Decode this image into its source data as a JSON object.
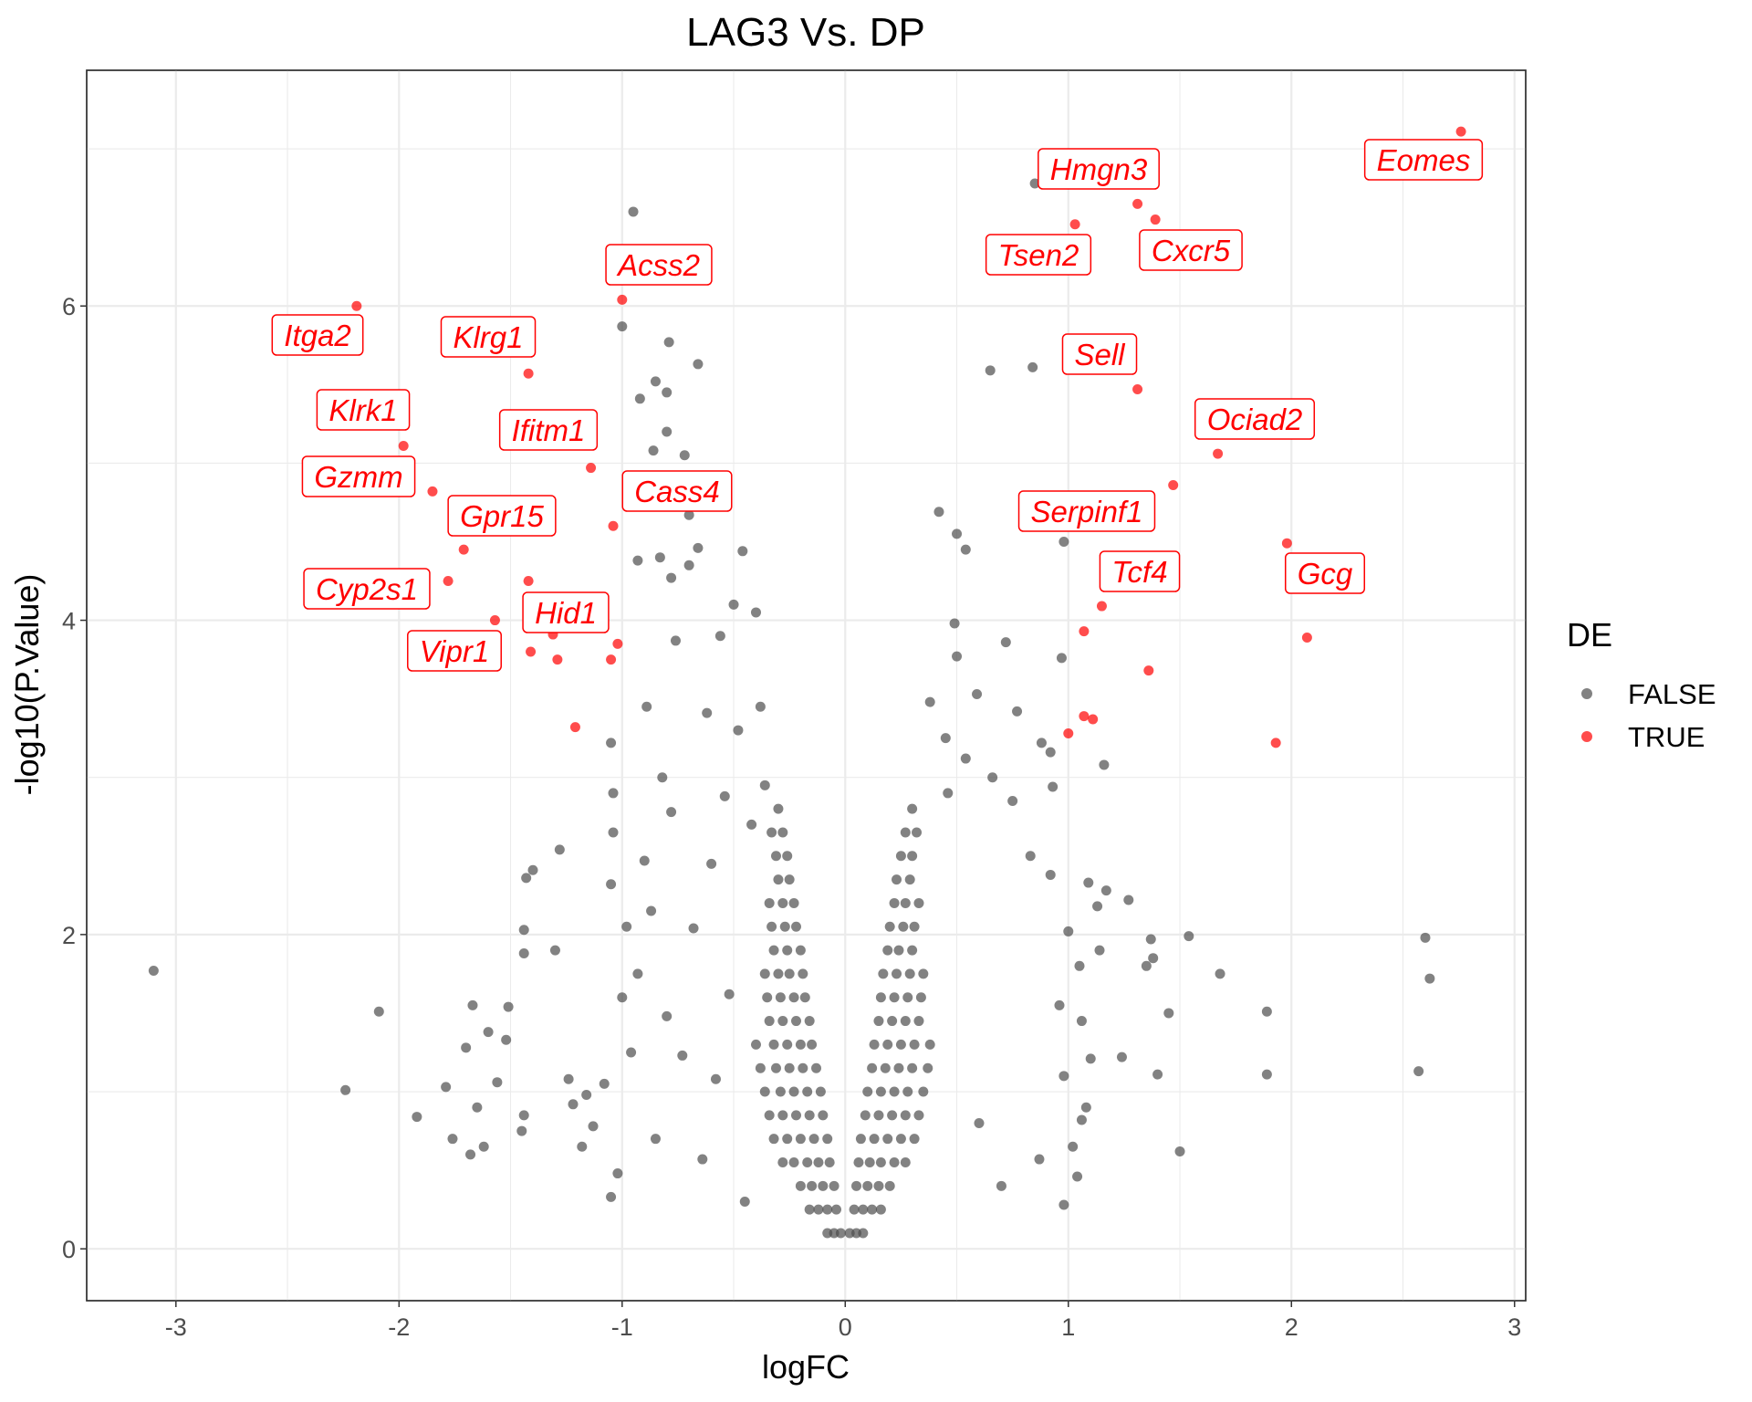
{
  "chart_data": {
    "type": "scatter",
    "title": "LAG3 Vs. DP",
    "xlabel": "logFC",
    "ylabel": "-log10(P.Value)",
    "xlim": [
      -3.4,
      3.05
    ],
    "ylim": [
      -0.33,
      7.5
    ],
    "x_ticks": [
      "-3",
      "-2",
      "-1",
      "0",
      "1",
      "2",
      "3"
    ],
    "y_ticks": [
      "0",
      "2",
      "4",
      "6"
    ],
    "grid": true,
    "legend": {
      "title": "DE",
      "position": "right",
      "entries": [
        {
          "name": "FALSE",
          "color": "#4d4d4d"
        },
        {
          "name": "TRUE",
          "color": "#ff0000"
        }
      ]
    },
    "true_points": [
      {
        "x": 2.76,
        "y": 7.11,
        "label": "Eomes"
      },
      {
        "x": 1.31,
        "y": 6.65,
        "label": "Hmgn3"
      },
      {
        "x": 1.03,
        "y": 6.52,
        "label": "Tsen2"
      },
      {
        "x": 1.39,
        "y": 6.55,
        "label": "Cxcr5"
      },
      {
        "x": 1.31,
        "y": 5.47,
        "label": "Sell"
      },
      {
        "x": 1.67,
        "y": 5.06,
        "label": "Ociad2"
      },
      {
        "x": 1.47,
        "y": 4.86,
        "label": "Serpinf1"
      },
      {
        "x": 1.15,
        "y": 4.09,
        "label": "Tcf4"
      },
      {
        "x": 1.98,
        "y": 4.49,
        "label": "Gcg"
      },
      {
        "x": -1.0,
        "y": 6.04,
        "label": "Acss2"
      },
      {
        "x": -2.19,
        "y": 6.0,
        "label": "Itga2"
      },
      {
        "x": -1.42,
        "y": 5.57,
        "label": "Klrg1"
      },
      {
        "x": -1.98,
        "y": 5.11,
        "label": "Klrk1"
      },
      {
        "x": -1.14,
        "y": 4.97,
        "label": "Ifitm1"
      },
      {
        "x": -1.85,
        "y": 4.82,
        "label": "Gzmm"
      },
      {
        "x": -1.04,
        "y": 4.6,
        "label": "Cass4"
      },
      {
        "x": -1.71,
        "y": 4.45,
        "label": "Gpr15"
      },
      {
        "x": -1.78,
        "y": 4.25,
        "label": "Cyp2s1"
      },
      {
        "x": -1.31,
        "y": 3.91,
        "label": "Hid1"
      },
      {
        "x": -1.57,
        "y": 4.0,
        "label": "Vipr1"
      },
      {
        "x": 2.07,
        "y": 3.89
      },
      {
        "x": 1.07,
        "y": 3.93
      },
      {
        "x": 1.36,
        "y": 3.68
      },
      {
        "x": 1.07,
        "y": 3.39
      },
      {
        "x": 1.11,
        "y": 3.37
      },
      {
        "x": 1.0,
        "y": 3.28
      },
      {
        "x": 1.93,
        "y": 3.22
      },
      {
        "x": -1.42,
        "y": 4.25
      },
      {
        "x": -1.41,
        "y": 3.8
      },
      {
        "x": -1.29,
        "y": 3.75
      },
      {
        "x": -1.02,
        "y": 3.85
      },
      {
        "x": -1.05,
        "y": 3.75
      },
      {
        "x": -1.21,
        "y": 3.32
      }
    ],
    "false_points": [
      [
        -3.1,
        1.77
      ],
      [
        -2.09,
        1.51
      ],
      [
        -2.24,
        1.01
      ],
      [
        -1.92,
        0.84
      ],
      [
        -1.79,
        1.03
      ],
      [
        -1.76,
        0.7
      ],
      [
        -1.68,
        0.6
      ],
      [
        -1.62,
        0.65
      ],
      [
        -1.7,
        1.28
      ],
      [
        -1.67,
        1.55
      ],
      [
        -1.65,
        0.9
      ],
      [
        -1.6,
        1.38
      ],
      [
        -1.56,
        1.06
      ],
      [
        -1.52,
        1.33
      ],
      [
        -1.51,
        1.54
      ],
      [
        -1.45,
        0.75
      ],
      [
        -1.44,
        0.85
      ],
      [
        -1.44,
        1.88
      ],
      [
        -1.44,
        2.03
      ],
      [
        -1.43,
        2.36
      ],
      [
        -1.4,
        2.41
      ],
      [
        -1.3,
        1.9
      ],
      [
        -1.28,
        2.54
      ],
      [
        -1.24,
        1.08
      ],
      [
        -1.22,
        0.92
      ],
      [
        -1.18,
        0.65
      ],
      [
        -1.16,
        0.98
      ],
      [
        -1.13,
        0.78
      ],
      [
        -1.08,
        1.05
      ],
      [
        -1.05,
        0.33
      ],
      [
        -1.05,
        2.32
      ],
      [
        -1.04,
        2.65
      ],
      [
        -1.04,
        2.9
      ],
      [
        -1.05,
        3.22
      ],
      [
        -1.02,
        0.48
      ],
      [
        -1.0,
        1.6
      ],
      [
        -0.98,
        2.05
      ],
      [
        -0.96,
        1.25
      ],
      [
        -0.93,
        1.75
      ],
      [
        -0.9,
        2.47
      ],
      [
        -0.89,
        3.45
      ],
      [
        -0.87,
        2.15
      ],
      [
        -0.85,
        0.7
      ],
      [
        -0.82,
        3.0
      ],
      [
        -0.8,
        1.48
      ],
      [
        -0.78,
        2.78
      ],
      [
        -0.76,
        3.87
      ],
      [
        -0.73,
        1.23
      ],
      [
        -0.7,
        4.35
      ],
      [
        -0.68,
        2.04
      ],
      [
        -0.66,
        4.46
      ],
      [
        -0.64,
        0.57
      ],
      [
        -0.62,
        3.41
      ],
      [
        -0.6,
        2.45
      ],
      [
        -0.58,
        1.08
      ],
      [
        -0.56,
        3.9
      ],
      [
        -0.54,
        2.88
      ],
      [
        -0.52,
        1.62
      ],
      [
        -0.5,
        4.1
      ],
      [
        -0.48,
        3.3
      ],
      [
        -0.46,
        4.44
      ],
      [
        -0.45,
        0.3
      ],
      [
        -0.42,
        2.7
      ],
      [
        -0.4,
        4.05
      ],
      [
        -0.38,
        3.45
      ],
      [
        -0.36,
        2.95
      ],
      [
        -0.95,
        6.6
      ],
      [
        -1.0,
        5.87
      ],
      [
        -0.79,
        5.77
      ],
      [
        -0.66,
        5.63
      ],
      [
        -0.85,
        5.52
      ],
      [
        -0.8,
        5.45
      ],
      [
        -0.92,
        5.41
      ],
      [
        -0.8,
        5.2
      ],
      [
        -0.86,
        5.08
      ],
      [
        -0.72,
        5.05
      ],
      [
        -0.84,
        4.86
      ],
      [
        -0.7,
        4.67
      ],
      [
        -0.83,
        4.4
      ],
      [
        -0.93,
        4.38
      ],
      [
        -0.78,
        4.27
      ],
      [
        0.85,
        6.78
      ],
      [
        0.65,
        5.59
      ],
      [
        0.84,
        5.61
      ],
      [
        0.42,
        4.69
      ],
      [
        0.5,
        4.55
      ],
      [
        0.98,
        4.5
      ],
      [
        0.54,
        4.45
      ],
      [
        0.49,
        3.98
      ],
      [
        0.5,
        3.77
      ],
      [
        0.59,
        3.53
      ],
      [
        0.72,
        3.86
      ],
      [
        0.77,
        3.42
      ],
      [
        0.45,
        3.25
      ],
      [
        0.38,
        3.48
      ],
      [
        0.54,
        3.12
      ],
      [
        0.66,
        3.0
      ],
      [
        0.88,
        3.22
      ],
      [
        0.92,
        3.16
      ],
      [
        0.97,
        3.76
      ],
      [
        1.16,
        3.08
      ],
      [
        0.93,
        2.94
      ],
      [
        0.46,
        2.9
      ],
      [
        0.75,
        2.85
      ],
      [
        0.83,
        2.5
      ],
      [
        0.92,
        2.38
      ],
      [
        1.0,
        2.02
      ],
      [
        1.09,
        2.33
      ],
      [
        1.13,
        2.18
      ],
      [
        1.17,
        2.28
      ],
      [
        1.27,
        2.22
      ],
      [
        1.05,
        1.8
      ],
      [
        1.14,
        1.9
      ],
      [
        0.96,
        1.55
      ],
      [
        1.06,
        1.45
      ],
      [
        0.98,
        1.1
      ],
      [
        1.1,
        1.21
      ],
      [
        1.24,
        1.22
      ],
      [
        1.08,
        0.9
      ],
      [
        1.02,
        0.65
      ],
      [
        1.06,
        0.82
      ],
      [
        0.98,
        0.28
      ],
      [
        1.04,
        0.46
      ],
      [
        0.87,
        0.57
      ],
      [
        0.7,
        0.4
      ],
      [
        0.6,
        0.8
      ],
      [
        1.37,
        1.97
      ],
      [
        1.54,
        1.99
      ],
      [
        1.68,
        1.75
      ],
      [
        1.45,
        1.5
      ],
      [
        1.4,
        1.11
      ],
      [
        1.5,
        0.62
      ],
      [
        1.38,
        1.85
      ],
      [
        1.35,
        1.8
      ],
      [
        1.89,
        1.51
      ],
      [
        1.89,
        1.11
      ],
      [
        2.6,
        1.98
      ],
      [
        2.62,
        1.72
      ],
      [
        2.57,
        1.13
      ],
      [
        -0.02,
        0.1
      ],
      [
        -0.05,
        0.1
      ],
      [
        -0.08,
        0.1
      ],
      [
        0.02,
        0.1
      ],
      [
        0.05,
        0.1
      ],
      [
        0.08,
        0.1
      ],
      [
        -0.04,
        0.25
      ],
      [
        -0.08,
        0.25
      ],
      [
        -0.12,
        0.25
      ],
      [
        -0.16,
        0.25
      ],
      [
        0.04,
        0.25
      ],
      [
        0.08,
        0.25
      ],
      [
        0.12,
        0.25
      ],
      [
        0.16,
        0.25
      ],
      [
        -0.05,
        0.4
      ],
      [
        -0.1,
        0.4
      ],
      [
        -0.15,
        0.4
      ],
      [
        -0.2,
        0.4
      ],
      [
        0.05,
        0.4
      ],
      [
        0.1,
        0.4
      ],
      [
        0.15,
        0.4
      ],
      [
        0.2,
        0.4
      ],
      [
        -0.07,
        0.55
      ],
      [
        -0.12,
        0.55
      ],
      [
        -0.17,
        0.55
      ],
      [
        -0.23,
        0.55
      ],
      [
        -0.28,
        0.55
      ],
      [
        0.06,
        0.55
      ],
      [
        0.11,
        0.55
      ],
      [
        0.16,
        0.55
      ],
      [
        0.22,
        0.55
      ],
      [
        0.27,
        0.55
      ],
      [
        -0.08,
        0.7
      ],
      [
        -0.14,
        0.7
      ],
      [
        -0.2,
        0.7
      ],
      [
        -0.26,
        0.7
      ],
      [
        -0.32,
        0.7
      ],
      [
        0.07,
        0.7
      ],
      [
        0.13,
        0.7
      ],
      [
        0.19,
        0.7
      ],
      [
        0.25,
        0.7
      ],
      [
        0.31,
        0.7
      ],
      [
        -0.1,
        0.85
      ],
      [
        -0.16,
        0.85
      ],
      [
        -0.22,
        0.85
      ],
      [
        -0.28,
        0.85
      ],
      [
        -0.34,
        0.85
      ],
      [
        0.09,
        0.85
      ],
      [
        0.15,
        0.85
      ],
      [
        0.21,
        0.85
      ],
      [
        0.27,
        0.85
      ],
      [
        0.33,
        0.85
      ],
      [
        -0.11,
        1.0
      ],
      [
        -0.17,
        1.0
      ],
      [
        -0.23,
        1.0
      ],
      [
        -0.29,
        1.0
      ],
      [
        -0.36,
        1.0
      ],
      [
        0.1,
        1.0
      ],
      [
        0.16,
        1.0
      ],
      [
        0.22,
        1.0
      ],
      [
        0.28,
        1.0
      ],
      [
        0.35,
        1.0
      ],
      [
        -0.13,
        1.15
      ],
      [
        -0.19,
        1.15
      ],
      [
        -0.25,
        1.15
      ],
      [
        -0.31,
        1.15
      ],
      [
        -0.38,
        1.15
      ],
      [
        0.12,
        1.15
      ],
      [
        0.18,
        1.15
      ],
      [
        0.24,
        1.15
      ],
      [
        0.3,
        1.15
      ],
      [
        0.37,
        1.15
      ],
      [
        -0.15,
        1.3
      ],
      [
        -0.2,
        1.3
      ],
      [
        -0.26,
        1.3
      ],
      [
        -0.32,
        1.3
      ],
      [
        -0.4,
        1.3
      ],
      [
        0.13,
        1.3
      ],
      [
        0.19,
        1.3
      ],
      [
        0.25,
        1.3
      ],
      [
        0.31,
        1.3
      ],
      [
        0.38,
        1.3
      ],
      [
        -0.16,
        1.45
      ],
      [
        -0.22,
        1.45
      ],
      [
        -0.28,
        1.45
      ],
      [
        -0.34,
        1.45
      ],
      [
        0.15,
        1.45
      ],
      [
        0.21,
        1.45
      ],
      [
        0.27,
        1.45
      ],
      [
        0.33,
        1.45
      ],
      [
        -0.18,
        1.6
      ],
      [
        -0.23,
        1.6
      ],
      [
        -0.29,
        1.6
      ],
      [
        -0.35,
        1.6
      ],
      [
        0.16,
        1.6
      ],
      [
        0.22,
        1.6
      ],
      [
        0.28,
        1.6
      ],
      [
        0.34,
        1.6
      ],
      [
        -0.19,
        1.75
      ],
      [
        -0.25,
        1.75
      ],
      [
        -0.3,
        1.75
      ],
      [
        -0.36,
        1.75
      ],
      [
        0.17,
        1.75
      ],
      [
        0.23,
        1.75
      ],
      [
        0.29,
        1.75
      ],
      [
        0.35,
        1.75
      ],
      [
        -0.2,
        1.9
      ],
      [
        -0.26,
        1.9
      ],
      [
        -0.32,
        1.9
      ],
      [
        0.19,
        1.9
      ],
      [
        0.24,
        1.9
      ],
      [
        0.3,
        1.9
      ],
      [
        -0.22,
        2.05
      ],
      [
        -0.27,
        2.05
      ],
      [
        -0.33,
        2.05
      ],
      [
        0.2,
        2.05
      ],
      [
        0.26,
        2.05
      ],
      [
        0.31,
        2.05
      ],
      [
        -0.23,
        2.2
      ],
      [
        -0.28,
        2.2
      ],
      [
        -0.34,
        2.2
      ],
      [
        0.22,
        2.2
      ],
      [
        0.27,
        2.2
      ],
      [
        0.33,
        2.2
      ],
      [
        -0.25,
        2.35
      ],
      [
        -0.3,
        2.35
      ],
      [
        0.23,
        2.35
      ],
      [
        0.29,
        2.35
      ],
      [
        -0.26,
        2.5
      ],
      [
        -0.31,
        2.5
      ],
      [
        0.25,
        2.5
      ],
      [
        0.3,
        2.5
      ],
      [
        -0.28,
        2.65
      ],
      [
        -0.33,
        2.65
      ],
      [
        0.27,
        2.65
      ],
      [
        0.32,
        2.65
      ],
      [
        -0.3,
        2.8
      ],
      [
        0.3,
        2.8
      ]
    ]
  }
}
